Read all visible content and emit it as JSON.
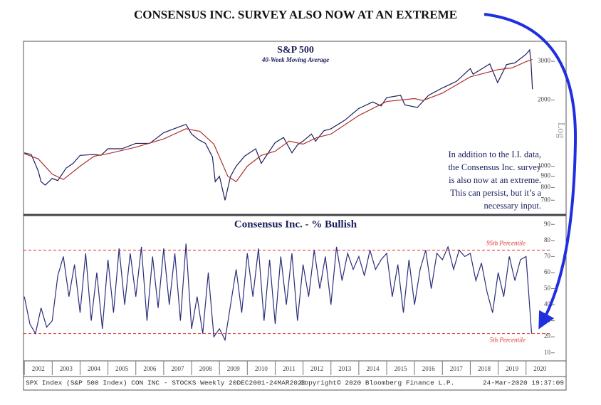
{
  "headline": "CONSENSUS INC. SURVEY ALSO NOW AT AN EXTREME",
  "footer": {
    "left": "SPX Index (S&P 500 Index) CON INC - STOCKS  Weekly 20DEC2001-24MAR2020",
    "center": "Copyright© 2020 Bloomberg Finance L.P.",
    "right": "24-Mar-2020 19:37:09"
  },
  "chart_data": [
    {
      "type": "line",
      "title": "S&P 500",
      "subtitle": "40-Week Moving Average",
      "log_label": "Log",
      "ylog": true,
      "annotation": [
        "In addition to the I.I. data,",
        "the Consensus Inc. survey",
        "is also now at an extreme.",
        "This can persist, but it’s a",
        "necessary input."
      ],
      "xlim": [
        2001.97,
        2020.85
      ],
      "ylim": [
        600,
        3700
      ],
      "yticks": [
        700,
        800,
        900,
        1000,
        2000,
        3000
      ],
      "series": [
        {
          "color": "#1a1f5c",
          "x": [
            2002.0,
            2002.25,
            2002.5,
            2002.6,
            2002.75,
            2003.0,
            2003.2,
            2003.5,
            2003.75,
            2004.0,
            2004.5,
            2004.75,
            2005.0,
            2005.5,
            2006.0,
            2006.5,
            2007.0,
            2007.5,
            2007.8,
            2008.0,
            2008.25,
            2008.5,
            2008.75,
            2008.85,
            2009.0,
            2009.2,
            2009.4,
            2009.6,
            2009.9,
            2010.3,
            2010.5,
            2010.75,
            2011.0,
            2011.3,
            2011.6,
            2011.8,
            2012.0,
            2012.3,
            2012.45,
            2012.75,
            2013.0,
            2013.5,
            2014.0,
            2014.5,
            2014.8,
            2015.0,
            2015.5,
            2015.65,
            2016.1,
            2016.5,
            2017.0,
            2017.5,
            2018.0,
            2018.1,
            2018.7,
            2018.98,
            2019.3,
            2019.6,
            2020.0,
            2020.13,
            2020.18,
            2020.23
          ],
          "values": [
            1150,
            1130,
            950,
            850,
            820,
            880,
            860,
            980,
            1030,
            1120,
            1130,
            1120,
            1200,
            1200,
            1270,
            1270,
            1420,
            1500,
            1550,
            1400,
            1320,
            1270,
            1100,
            850,
            900,
            700,
            900,
            1000,
            1110,
            1200,
            1030,
            1150,
            1280,
            1350,
            1150,
            1250,
            1300,
            1400,
            1300,
            1450,
            1480,
            1620,
            1830,
            1960,
            1880,
            2050,
            2100,
            1900,
            1850,
            2100,
            2270,
            2430,
            2780,
            2620,
            2920,
            2400,
            2900,
            2950,
            3230,
            3380,
            2950,
            2240
          ]
        },
        {
          "color": "#b03030",
          "x": [
            2002.0,
            2002.5,
            2003.0,
            2003.4,
            2004.0,
            2004.5,
            2005.0,
            2006.0,
            2007.0,
            2007.8,
            2008.3,
            2008.8,
            2009.3,
            2009.6,
            2010.0,
            2010.5,
            2011.0,
            2011.5,
            2012.0,
            2012.5,
            2013.0,
            2014.0,
            2015.0,
            2016.0,
            2016.3,
            2017.0,
            2018.0,
            2019.0,
            2019.5,
            2020.0,
            2020.23
          ],
          "values": [
            1140,
            1080,
            920,
            870,
            1000,
            1110,
            1140,
            1220,
            1330,
            1480,
            1440,
            1260,
            900,
            850,
            1000,
            1120,
            1170,
            1300,
            1260,
            1350,
            1400,
            1700,
            1970,
            2030,
            1990,
            2150,
            2550,
            2750,
            2800,
            2990,
            3060
          ]
        }
      ]
    },
    {
      "type": "line",
      "title": "Consensus Inc. - % Bullish",
      "xlim": [
        2001.97,
        2020.85
      ],
      "ylim": [
        5,
        95
      ],
      "yticks": [
        10,
        20,
        30,
        40,
        50,
        60,
        70,
        80,
        90
      ],
      "xticks": [
        {
          "value": 2002.5,
          "label": "2002"
        },
        {
          "value": 2003.5,
          "label": "2003"
        },
        {
          "value": 2004.5,
          "label": "2004"
        },
        {
          "value": 2005.5,
          "label": "2005"
        },
        {
          "value": 2006.5,
          "label": "2006"
        },
        {
          "value": 2007.5,
          "label": "2007"
        },
        {
          "value": 2008.5,
          "label": "2008"
        },
        {
          "value": 2009.5,
          "label": "2009"
        },
        {
          "value": 2010.5,
          "label": "2010"
        },
        {
          "value": 2011.5,
          "label": "2011"
        },
        {
          "value": 2012.5,
          "label": "2012"
        },
        {
          "value": 2013.5,
          "label": "2013"
        },
        {
          "value": 2014.5,
          "label": "2014"
        },
        {
          "value": 2015.5,
          "label": "2015"
        },
        {
          "value": 2016.5,
          "label": "2016"
        },
        {
          "value": 2017.5,
          "label": "2017"
        },
        {
          "value": 2018.5,
          "label": "2018"
        },
        {
          "value": 2019.5,
          "label": "2019"
        },
        {
          "value": 2020.5,
          "label": "2020"
        }
      ],
      "reference_lines": [
        {
          "value": 74,
          "label": "95th Percentile",
          "color": "#e03030"
        },
        {
          "value": 22,
          "label": "5th Percentile",
          "color": "#e03030"
        }
      ],
      "series": [
        {
          "color": "#2a2f7a",
          "x": [
            2002.0,
            2002.2,
            2002.4,
            2002.6,
            2002.8,
            2003.0,
            2003.2,
            2003.4,
            2003.6,
            2003.8,
            2004.0,
            2004.2,
            2004.4,
            2004.6,
            2004.8,
            2005.0,
            2005.2,
            2005.4,
            2005.6,
            2005.8,
            2006.0,
            2006.2,
            2006.4,
            2006.6,
            2006.8,
            2007.0,
            2007.2,
            2007.4,
            2007.6,
            2007.8,
            2008.0,
            2008.2,
            2008.4,
            2008.6,
            2008.8,
            2009.0,
            2009.2,
            2009.4,
            2009.6,
            2009.8,
            2010.0,
            2010.2,
            2010.4,
            2010.6,
            2010.8,
            2011.0,
            2011.2,
            2011.4,
            2011.6,
            2011.8,
            2012.0,
            2012.2,
            2012.4,
            2012.6,
            2012.8,
            2013.0,
            2013.2,
            2013.4,
            2013.6,
            2013.8,
            2014.0,
            2014.2,
            2014.4,
            2014.6,
            2014.8,
            2015.0,
            2015.2,
            2015.4,
            2015.6,
            2015.8,
            2016.0,
            2016.2,
            2016.4,
            2016.6,
            2016.8,
            2017.0,
            2017.2,
            2017.4,
            2017.6,
            2017.8,
            2018.0,
            2018.2,
            2018.4,
            2018.6,
            2018.8,
            2019.0,
            2019.2,
            2019.4,
            2019.6,
            2019.8,
            2020.0,
            2020.2
          ],
          "values": [
            45,
            28,
            22,
            38,
            26,
            30,
            58,
            70,
            45,
            65,
            35,
            72,
            30,
            60,
            25,
            68,
            35,
            75,
            40,
            72,
            45,
            76,
            30,
            70,
            38,
            75,
            40,
            72,
            30,
            78,
            25,
            45,
            22,
            60,
            20,
            25,
            18,
            40,
            62,
            35,
            72,
            45,
            75,
            30,
            68,
            28,
            70,
            40,
            72,
            30,
            65,
            45,
            74,
            50,
            70,
            40,
            76,
            55,
            72,
            62,
            70,
            58,
            74,
            62,
            68,
            72,
            45,
            65,
            35,
            68,
            40,
            62,
            74,
            50,
            72,
            68,
            76,
            62,
            74,
            70,
            72,
            55,
            66,
            48,
            35,
            60,
            45,
            70,
            55,
            68,
            70,
            22
          ]
        }
      ]
    }
  ]
}
